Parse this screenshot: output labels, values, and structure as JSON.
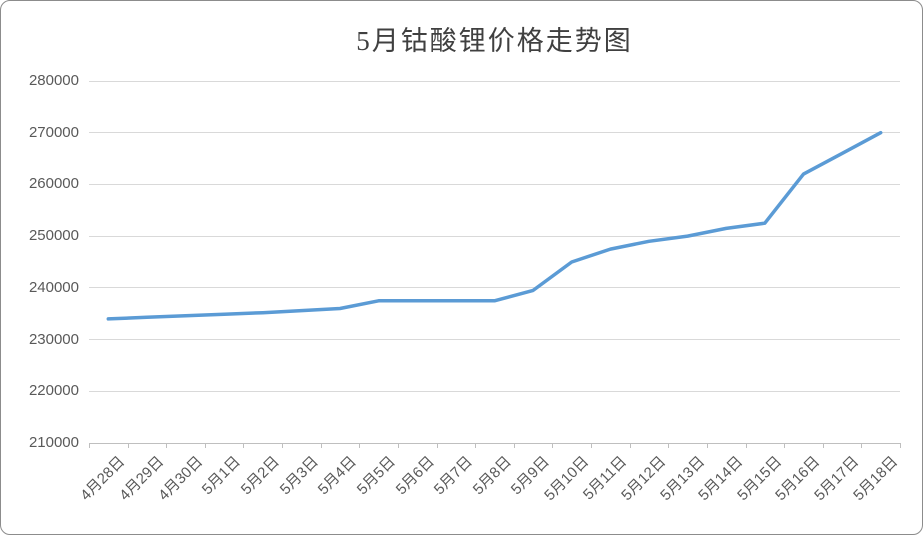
{
  "chart_data": {
    "type": "line",
    "title": "5月钴酸锂价格走势图",
    "xlabel": "",
    "ylabel": "",
    "categories": [
      "4月28日",
      "4月29日",
      "4月30日",
      "5月1日",
      "5月2日",
      "5月3日",
      "5月4日",
      "5月5日",
      "5月6日",
      "5月7日",
      "5月8日",
      "5月9日",
      "5月10日",
      "5月11日",
      "5月12日",
      "5月13日",
      "5月14日",
      "5月15日",
      "5月16日",
      "5月17日",
      "5月18日"
    ],
    "values": [
      234000,
      234300,
      234600,
      234900,
      235200,
      235600,
      236000,
      237500,
      237500,
      237500,
      237500,
      239500,
      245000,
      247500,
      249000,
      250000,
      251500,
      252500,
      262000,
      266000,
      270000
    ],
    "ylim": [
      210000,
      280000
    ],
    "ytick_interval": 10000,
    "ytick_labels": [
      "210000",
      "220000",
      "230000",
      "240000",
      "250000",
      "260000",
      "270000",
      "280000"
    ],
    "grid": "horizontal",
    "legend": "none",
    "style": {
      "line_color": "#5b9bd5",
      "line_width": 3.5,
      "gridline_color": "#d9d9d9",
      "axis_color": "#bfbfbf",
      "label_color": "#595959",
      "title_color": "#404040"
    }
  }
}
